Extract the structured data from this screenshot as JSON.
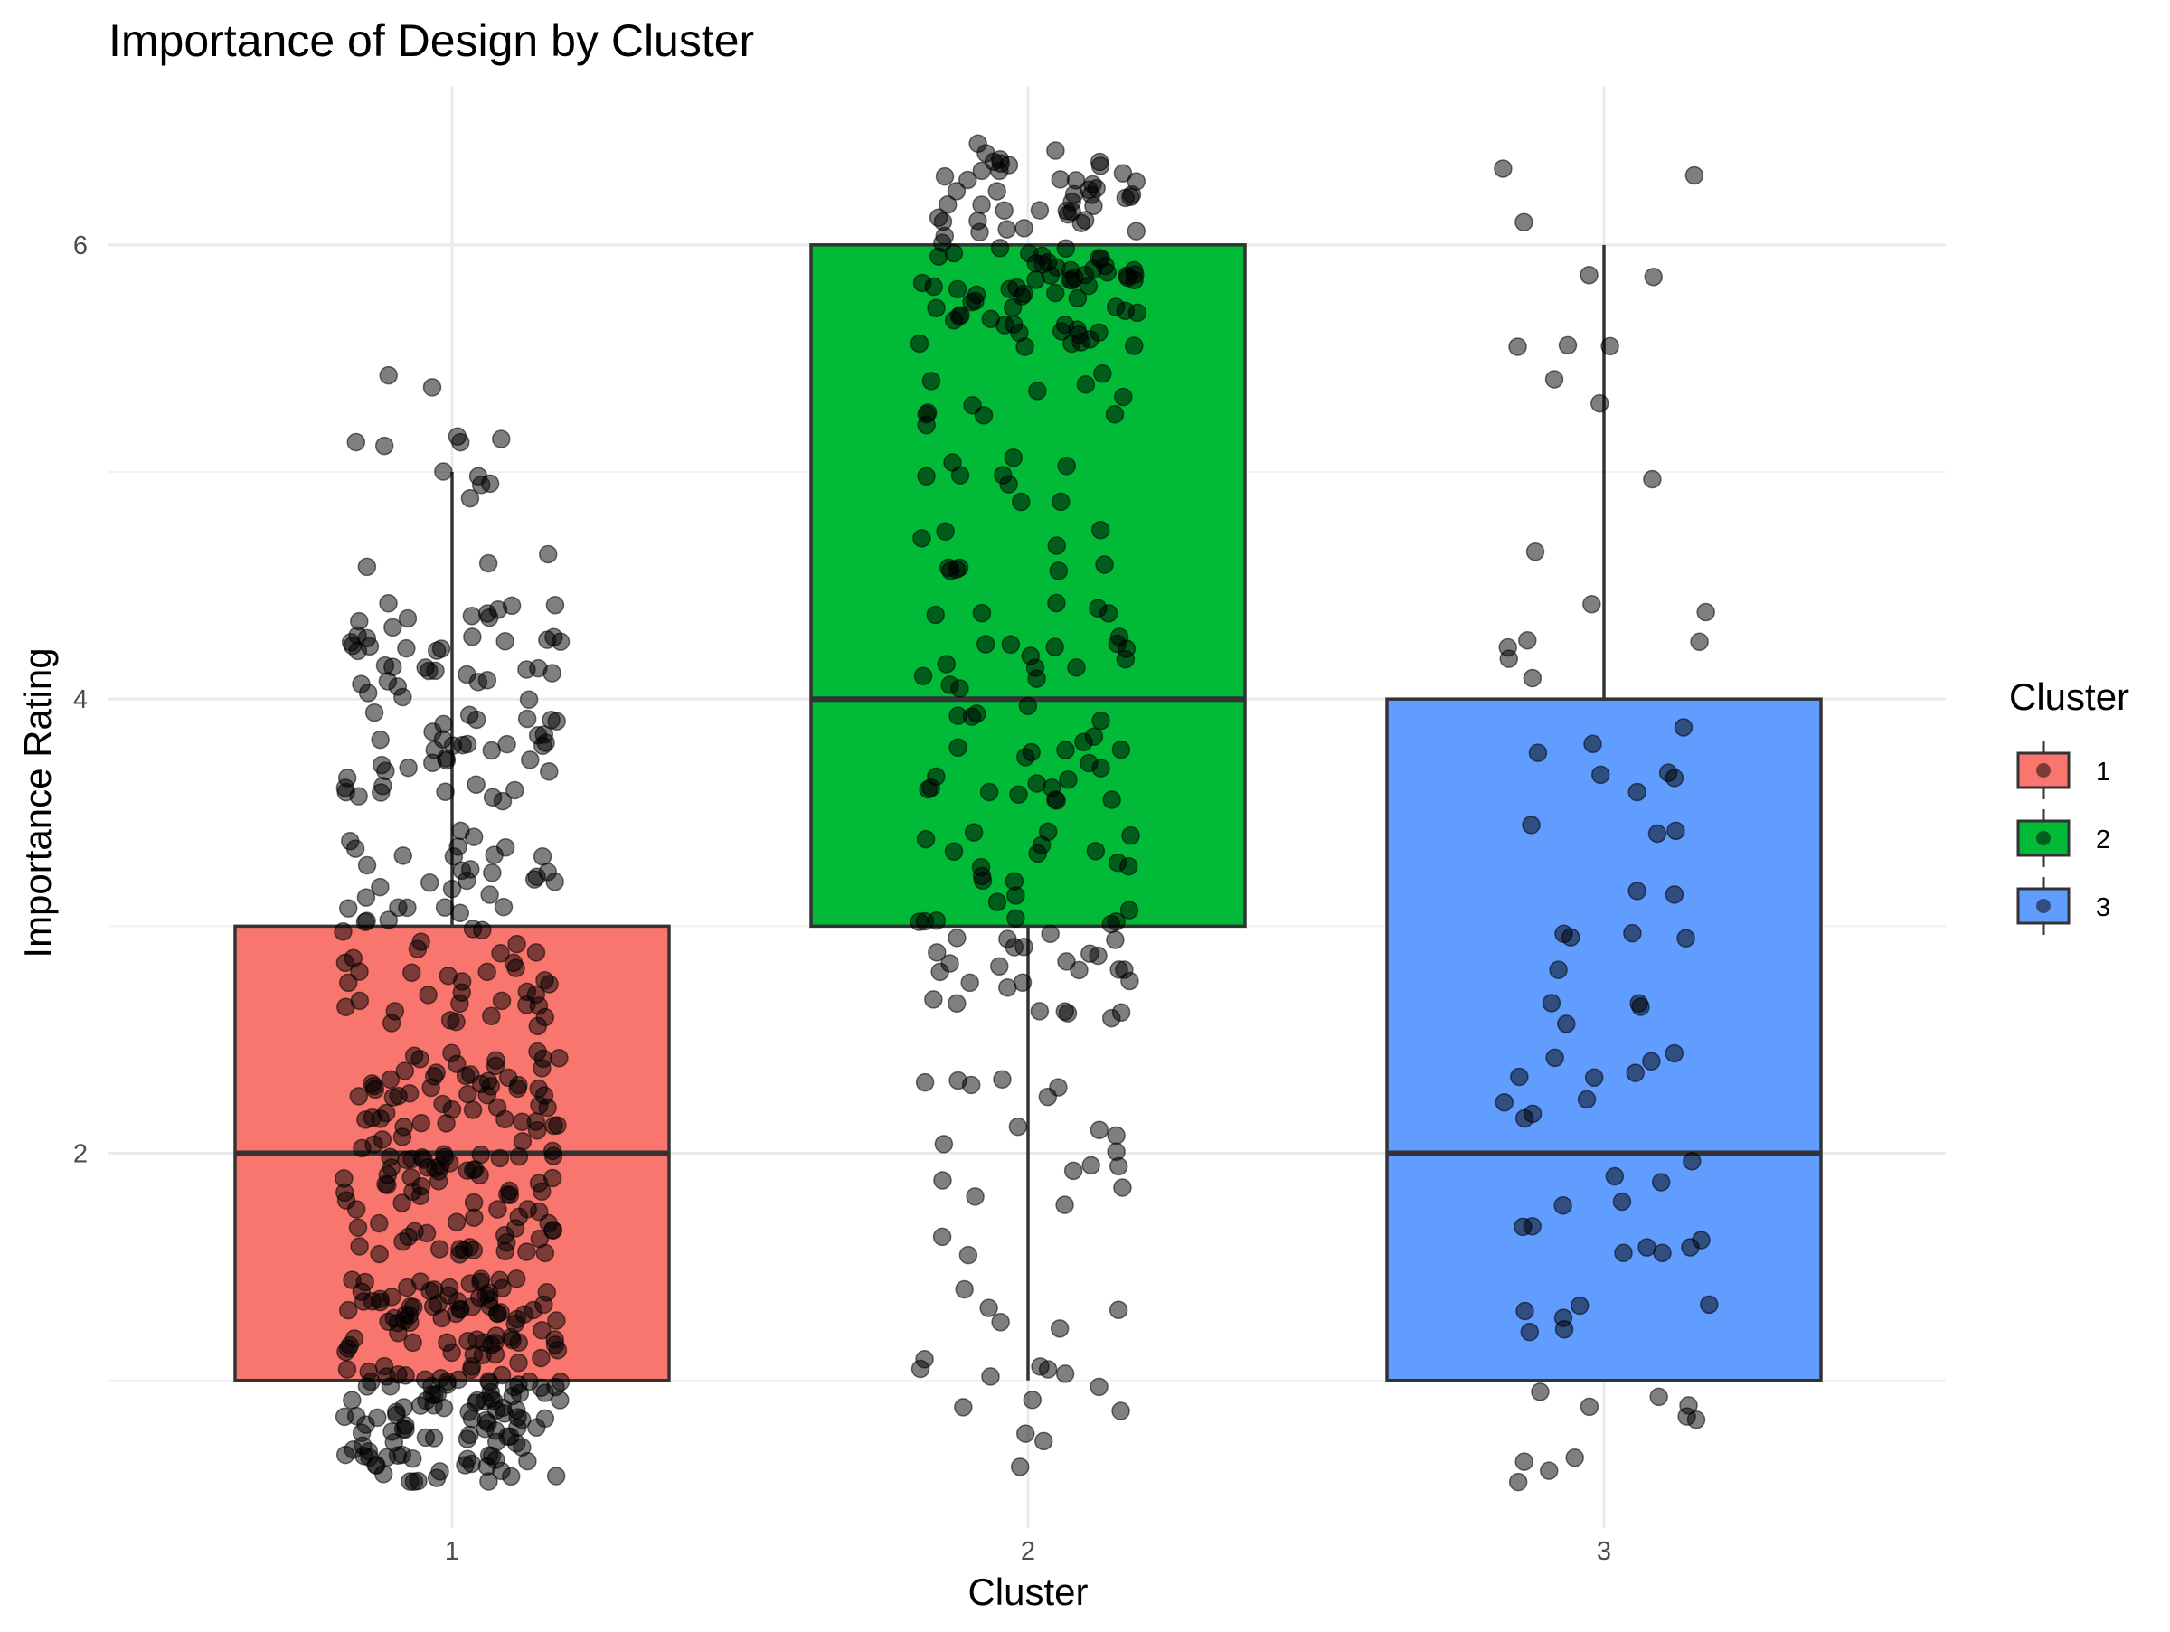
{
  "chart_data": {
    "type": "box",
    "title": "Importance of Design by Cluster",
    "xlabel": "Cluster",
    "ylabel": "Importance Rating",
    "categories": [
      "1",
      "2",
      "3"
    ],
    "ylim": [
      0.35,
      6.7
    ],
    "yticks": [
      2,
      4,
      6
    ],
    "grid": true,
    "legend": {
      "title": "Cluster",
      "position": "right",
      "entries": [
        {
          "label": "1",
          "color": "#F8766D"
        },
        {
          "label": "2",
          "color": "#00BA38"
        },
        {
          "label": "3",
          "color": "#619CFF"
        }
      ]
    },
    "boxes": [
      {
        "category": "1",
        "color": "#F8766D",
        "lower_whisker": 1,
        "q1": 1,
        "median": 2,
        "q3": 3,
        "upper_whisker": 5
      },
      {
        "category": "2",
        "color": "#00BA38",
        "lower_whisker": 1,
        "q1": 3,
        "median": 4,
        "q3": 6,
        "upper_whisker": 6
      },
      {
        "category": "3",
        "color": "#619CFF",
        "lower_whisker": 1,
        "q1": 1,
        "median": 2,
        "q3": 4,
        "upper_whisker": 6
      }
    ],
    "points": {
      "description_jitter_width": 0.2,
      "color": "#000000",
      "opacity": 0.5,
      "groups": [
        {
          "category": "1",
          "counts": {
            "1": 190,
            "2": 130,
            "3": 70,
            "4": 80,
            "5": 15
          }
        },
        {
          "category": "2",
          "counts": {
            "1": 18,
            "2": 20,
            "3": 50,
            "4": 45,
            "5": 30,
            "6": 110
          }
        },
        {
          "category": "3",
          "counts": {
            "1": 16,
            "2": 22,
            "3": 14,
            "4": 14,
            "5": 4,
            "6": 8
          }
        }
      ]
    }
  }
}
